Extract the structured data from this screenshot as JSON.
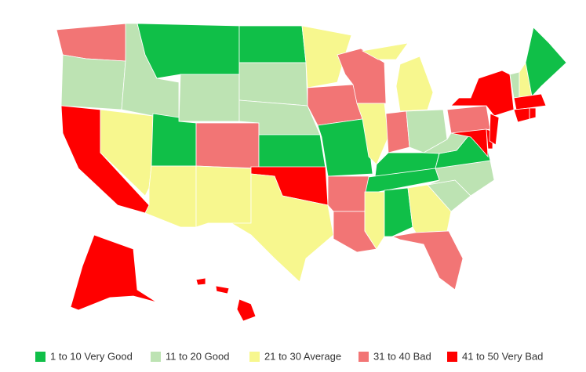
{
  "legend": [
    {
      "label": "1 to 10 Very Good",
      "color": "#10bf48"
    },
    {
      "label": "11 to 20 Good",
      "color": "#bde3b3"
    },
    {
      "label": "21 to 30 Average",
      "color": "#f7f78e"
    },
    {
      "label": "31 to 40 Bad",
      "color": "#f27575"
    },
    {
      "label": "41 to 50 Very Bad",
      "color": "#ff0000"
    }
  ],
  "regions": [
    3,
    1,
    4,
    2,
    1,
    0,
    1,
    0,
    3,
    2,
    2,
    0,
    1,
    1,
    0,
    4,
    2,
    2,
    3,
    0,
    3,
    3,
    3,
    2,
    2,
    3,
    1,
    0,
    0,
    2,
    0,
    2,
    3,
    1,
    1,
    0,
    1,
    3,
    4,
    4,
    4,
    4,
    1,
    2,
    0,
    4,
    4,
    4,
    4,
    4,
    4,
    4
  ]
}
